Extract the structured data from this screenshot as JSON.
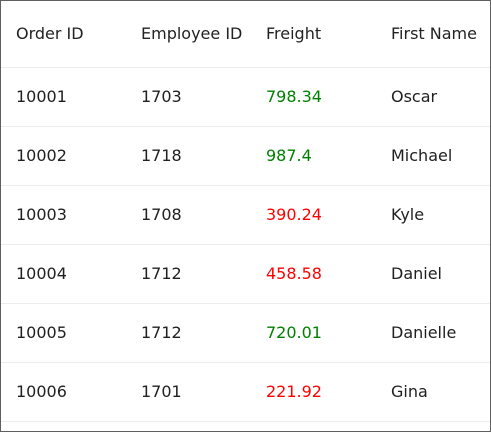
{
  "table": {
    "columns": [
      "Order ID",
      "Employee ID",
      "Freight",
      "First Name"
    ],
    "rows": [
      {
        "order_id": "10001",
        "employee_id": "1703",
        "freight": "798.34",
        "first_name": "Oscar"
      },
      {
        "order_id": "10002",
        "employee_id": "1718",
        "freight": "987.4",
        "first_name": "Michael"
      },
      {
        "order_id": "10003",
        "employee_id": "1708",
        "freight": "390.24",
        "first_name": "Kyle"
      },
      {
        "order_id": "10004",
        "employee_id": "1712",
        "freight": "458.58",
        "first_name": "Daniel"
      },
      {
        "order_id": "10005",
        "employee_id": "1712",
        "freight": "720.01",
        "first_name": "Danielle"
      },
      {
        "order_id": "10006",
        "employee_id": "1701",
        "freight": "221.92",
        "first_name": "Gina"
      }
    ]
  },
  "colors": {
    "freight_high": "#008000",
    "freight_low": "#ff0000",
    "border": "#5f5f5f",
    "row_divider": "#ececec"
  }
}
